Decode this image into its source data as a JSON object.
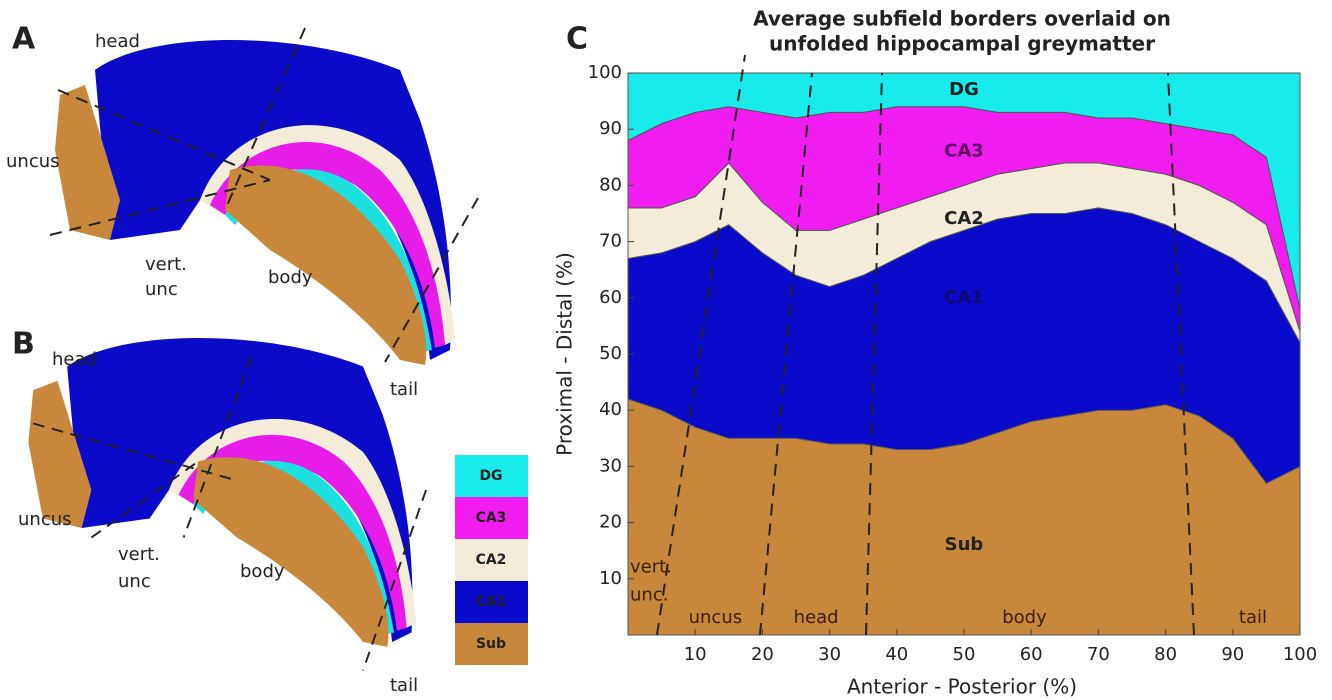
{
  "panel_labels": [
    "A",
    "B",
    "C"
  ],
  "panel_a": {
    "head": "head",
    "uncus": "uncus",
    "vert": "vert.",
    "unc": "unc",
    "body": "body",
    "tail": "tail"
  },
  "panel_b": {
    "head": "head",
    "uncus": "uncus",
    "vert": "vert.",
    "unc": "unc",
    "body": "body",
    "tail": "tail"
  },
  "chart_data": {
    "type": "stacked_area",
    "title": [
      "Average subfield borders overlaid on",
      "unfolded hippocampal greymatter"
    ],
    "x_label": "Anterior - Posterior (%)",
    "y_label": "Proximal - Distal (%)",
    "xlim": [
      0,
      100
    ],
    "ylim": [
      0,
      100
    ],
    "xticks": [
      10,
      20,
      30,
      40,
      50,
      60,
      70,
      80,
      90,
      100
    ],
    "yticks": [
      10,
      20,
      30,
      40,
      50,
      60,
      70,
      80,
      90,
      100
    ],
    "x": [
      0,
      5,
      10,
      15,
      20,
      25,
      30,
      35,
      40,
      45,
      50,
      55,
      60,
      65,
      70,
      75,
      80,
      85,
      90,
      95,
      100
    ],
    "series": [
      {
        "name": "Sub",
        "color": "#c8873a",
        "values": [
          42,
          40,
          37,
          35,
          35,
          35,
          34,
          34,
          33,
          33,
          34,
          36,
          38,
          39,
          40,
          40,
          41,
          39,
          35,
          27,
          30
        ]
      },
      {
        "name": "CA1",
        "color": "#0a0acb",
        "values": [
          25,
          28,
          33,
          38,
          33,
          29,
          28,
          30,
          34,
          37,
          38,
          38,
          37,
          36,
          36,
          35,
          32,
          31,
          32,
          36,
          22
        ]
      },
      {
        "name": "CA2",
        "color": "#f3ecd8",
        "values": [
          9,
          8,
          8,
          11,
          9,
          8,
          10,
          10,
          9,
          8,
          8,
          8,
          8,
          9,
          8,
          8,
          9,
          10,
          10,
          10,
          2
        ]
      },
      {
        "name": "CA3",
        "color": "#f01cf0",
        "values": [
          12,
          15,
          15,
          10,
          16,
          20,
          21,
          19,
          18,
          16,
          14,
          11,
          10,
          9,
          8,
          9,
          9,
          10,
          12,
          12,
          4
        ]
      },
      {
        "name": "DG",
        "color": "#17ebeb",
        "values": [
          12,
          9,
          7,
          6,
          7,
          8,
          7,
          7,
          6,
          6,
          6,
          7,
          7,
          7,
          8,
          8,
          9,
          10,
          11,
          15,
          42
        ]
      }
    ],
    "region_labels": [
      "vert.",
      "unc.",
      "uncus",
      "head",
      "body",
      "tail"
    ]
  }
}
